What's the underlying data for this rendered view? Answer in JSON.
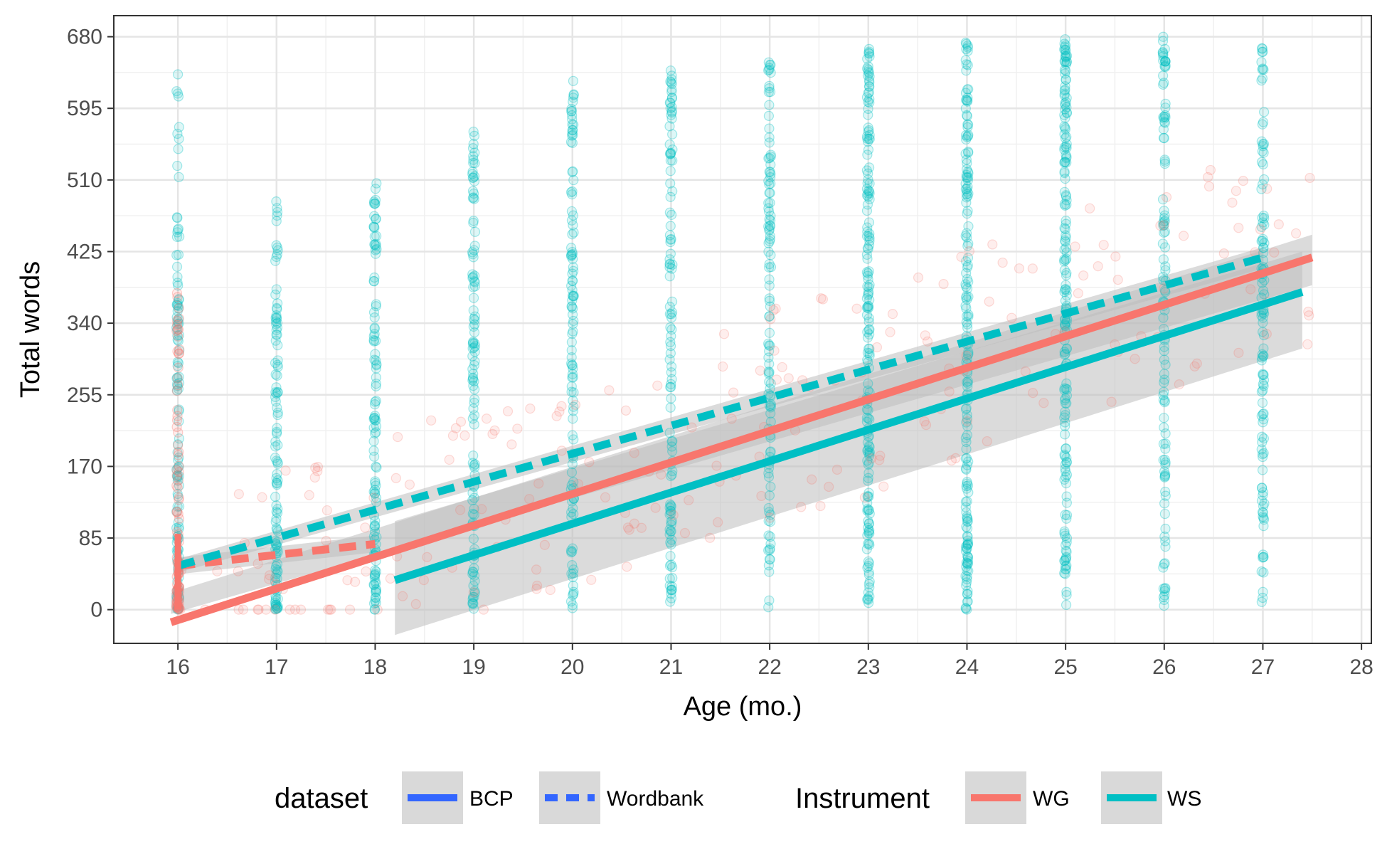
{
  "chart_data": {
    "type": "scatter",
    "xlabel": "Age (mo.)",
    "ylabel": "Total words",
    "xlim": [
      15.35,
      28.1
    ],
    "ylim": [
      -40,
      705
    ],
    "x_ticks": [
      16,
      17,
      18,
      19,
      20,
      21,
      22,
      23,
      24,
      25,
      26,
      27,
      28
    ],
    "y_ticks": [
      0,
      85,
      170,
      255,
      340,
      425,
      510,
      595,
      680
    ],
    "grid": true,
    "legend_position": "bottom",
    "colors": {
      "WG": "#F8766D",
      "WS": "#00BFC4",
      "dataset_key": "#3366FF",
      "ribbon": "#BEBEBE"
    },
    "legends": [
      {
        "title": "dataset",
        "entries": [
          {
            "label": "BCP",
            "linetype": "solid"
          },
          {
            "label": "Wordbank",
            "linetype": "dashed"
          }
        ]
      },
      {
        "title": "Instrument",
        "entries": [
          {
            "label": "WG",
            "color": "#F8766D"
          },
          {
            "label": "WS",
            "color": "#00BFC4"
          }
        ]
      }
    ],
    "fit_lines": [
      {
        "dataset": "BCP",
        "instrument": "WG",
        "x": [
          15.93,
          27.5
        ],
        "y": [
          -15,
          418
        ],
        "ci": [
          [
            -5,
            20
          ],
          [
            385,
            445
          ]
        ]
      },
      {
        "dataset": "BCP",
        "instrument": "WS",
        "x": [
          18.2,
          27.4
        ],
        "y": [
          35,
          377
        ],
        "ci": [
          [
            -30,
            105
          ],
          [
            310,
            425
          ]
        ]
      },
      {
        "dataset": "Wordbank",
        "instrument": "WG",
        "x": [
          16.0,
          18.0
        ],
        "y": [
          52,
          78
        ],
        "ci": [
          [
            42,
            62
          ],
          [
            68,
            88
          ]
        ]
      },
      {
        "dataset": "Wordbank",
        "instrument": "WS",
        "x": [
          16.0,
          27.0
        ],
        "y": [
          52,
          418
        ],
        "ci": [
          [
            44,
            60
          ],
          [
            405,
            430
          ]
        ]
      }
    ],
    "points_summary": [
      {
        "instrument": "WS",
        "x": 16,
        "y_range": [
          0,
          640
        ]
      },
      {
        "instrument": "WS",
        "x": 17,
        "y_range": [
          0,
          490
        ]
      },
      {
        "instrument": "WS",
        "x": 18,
        "y_range": [
          0,
          515
        ]
      },
      {
        "instrument": "WS",
        "x": 19,
        "y_range": [
          0,
          580
        ]
      },
      {
        "instrument": "WS",
        "x": 20,
        "y_range": [
          0,
          630
        ]
      },
      {
        "instrument": "WS",
        "x": 21,
        "y_range": [
          0,
          650
        ]
      },
      {
        "instrument": "WS",
        "x": 22,
        "y_range": [
          0,
          650
        ]
      },
      {
        "instrument": "WS",
        "x": 23,
        "y_range": [
          0,
          680
        ]
      },
      {
        "instrument": "WS",
        "x": 24,
        "y_range": [
          0,
          680
        ]
      },
      {
        "instrument": "WS",
        "x": 25,
        "y_range": [
          0,
          680
        ]
      },
      {
        "instrument": "WS",
        "x": 26,
        "y_range": [
          0,
          680
        ]
      },
      {
        "instrument": "WS",
        "x": 27,
        "y_range": [
          0,
          680
        ]
      },
      {
        "instrument": "WG",
        "x": 16,
        "y_range": [
          0,
          390
        ]
      },
      {
        "instrument": "WG",
        "x": [
          16,
          27.5
        ],
        "y_range": [
          0,
          580
        ],
        "note_free": true
      }
    ]
  }
}
